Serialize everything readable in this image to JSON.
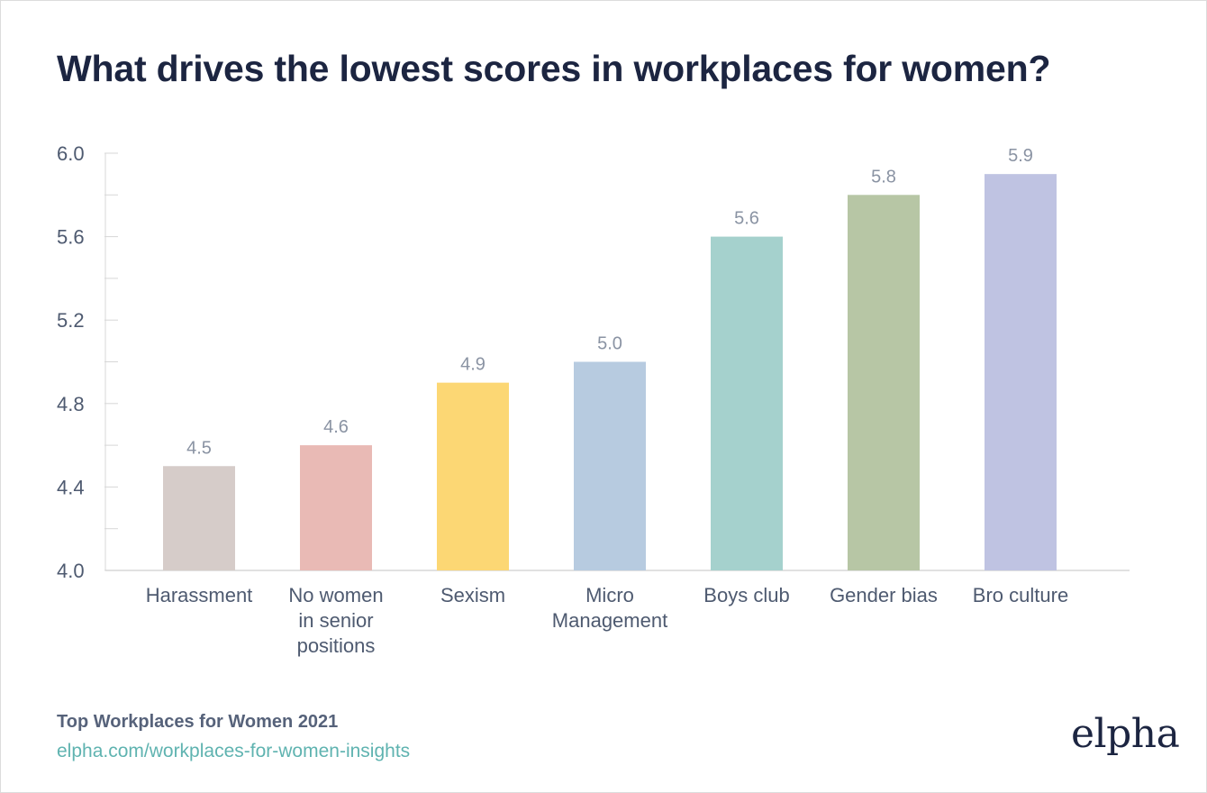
{
  "title": "What drives the lowest scores in workplaces for women?",
  "chart_data": {
    "type": "bar",
    "title": "What drives the lowest scores in workplaces for women?",
    "xlabel": "",
    "ylabel": "",
    "ylim": [
      4.0,
      6.0
    ],
    "yticks": [
      "4.0",
      "4.4",
      "4.8",
      "5.2",
      "5.6",
      "6.0"
    ],
    "grid": false,
    "categories": [
      [
        "Harassment"
      ],
      [
        "No women",
        "in senior",
        "positions"
      ],
      [
        "Sexism"
      ],
      [
        "Micro",
        "Management"
      ],
      [
        "Boys club"
      ],
      [
        "Gender bias"
      ],
      [
        "Bro culture"
      ]
    ],
    "values": [
      4.5,
      4.6,
      4.9,
      5.0,
      5.6,
      5.8,
      5.9
    ],
    "value_labels": [
      "4.5",
      "4.6",
      "4.9",
      "5.0",
      "5.6",
      "5.8",
      "5.9"
    ],
    "colors": [
      "#d6ccc9",
      "#e9bab5",
      "#fcd774",
      "#b7cbe0",
      "#a5d1cd",
      "#b7c6a5",
      "#bfc3e2"
    ]
  },
  "footer": {
    "source_title": "Top Workplaces for Women 2021",
    "source_link": "elpha.com/workplaces-for-women-insights",
    "brand": "elpha"
  }
}
